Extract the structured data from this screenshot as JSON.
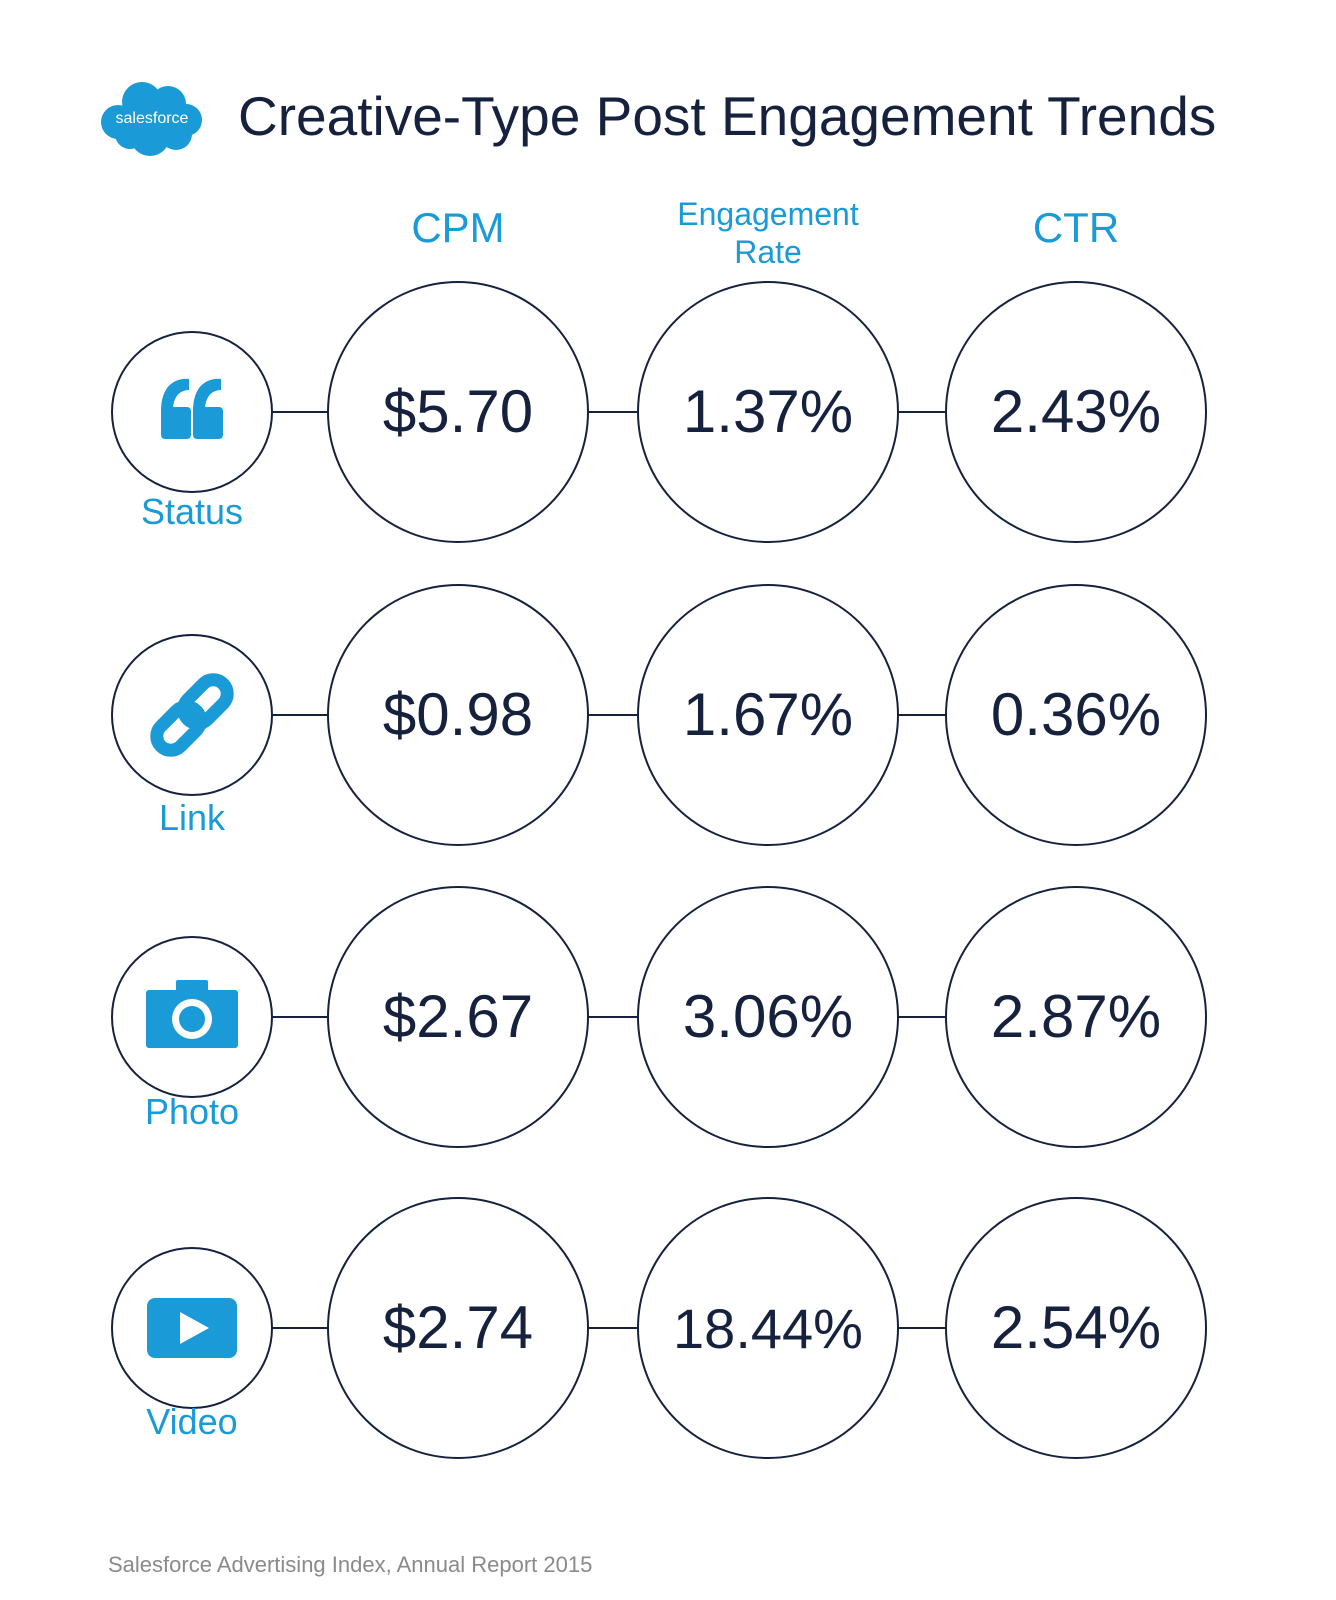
{
  "header": {
    "logo_text": "salesforce",
    "title": "Creative-Type Post Engagement Trends"
  },
  "columns": [
    "CPM",
    "Engagement Rate",
    "CTR"
  ],
  "rows": [
    {
      "label": "Status",
      "icon": "quote-icon"
    },
    {
      "label": "Link",
      "icon": "link-icon"
    },
    {
      "label": "Photo",
      "icon": "camera-icon"
    },
    {
      "label": "Video",
      "icon": "video-play-icon"
    }
  ],
  "chart_data": {
    "type": "table",
    "title": "Creative-Type Post Engagement Trends",
    "columns": [
      "CPM",
      "Engagement Rate",
      "CTR"
    ],
    "categories": [
      "Status",
      "Link",
      "Photo",
      "Video"
    ],
    "series": [
      {
        "name": "CPM",
        "values": [
          "$5.70",
          "$0.98",
          "$2.67",
          "$2.74"
        ]
      },
      {
        "name": "Engagement Rate",
        "values": [
          "1.37%",
          "1.67%",
          "3.06%",
          "18.44%"
        ]
      },
      {
        "name": "CTR",
        "values": [
          "2.43%",
          "0.36%",
          "2.87%",
          "2.54%"
        ]
      }
    ]
  },
  "colors": {
    "accent": "#1a9ad6",
    "outline": "#16213e",
    "text_dark": "#16213e",
    "footer_gray": "#8a8a8a"
  },
  "footer": "Salesforce Advertising Index, Annual Report 2015"
}
